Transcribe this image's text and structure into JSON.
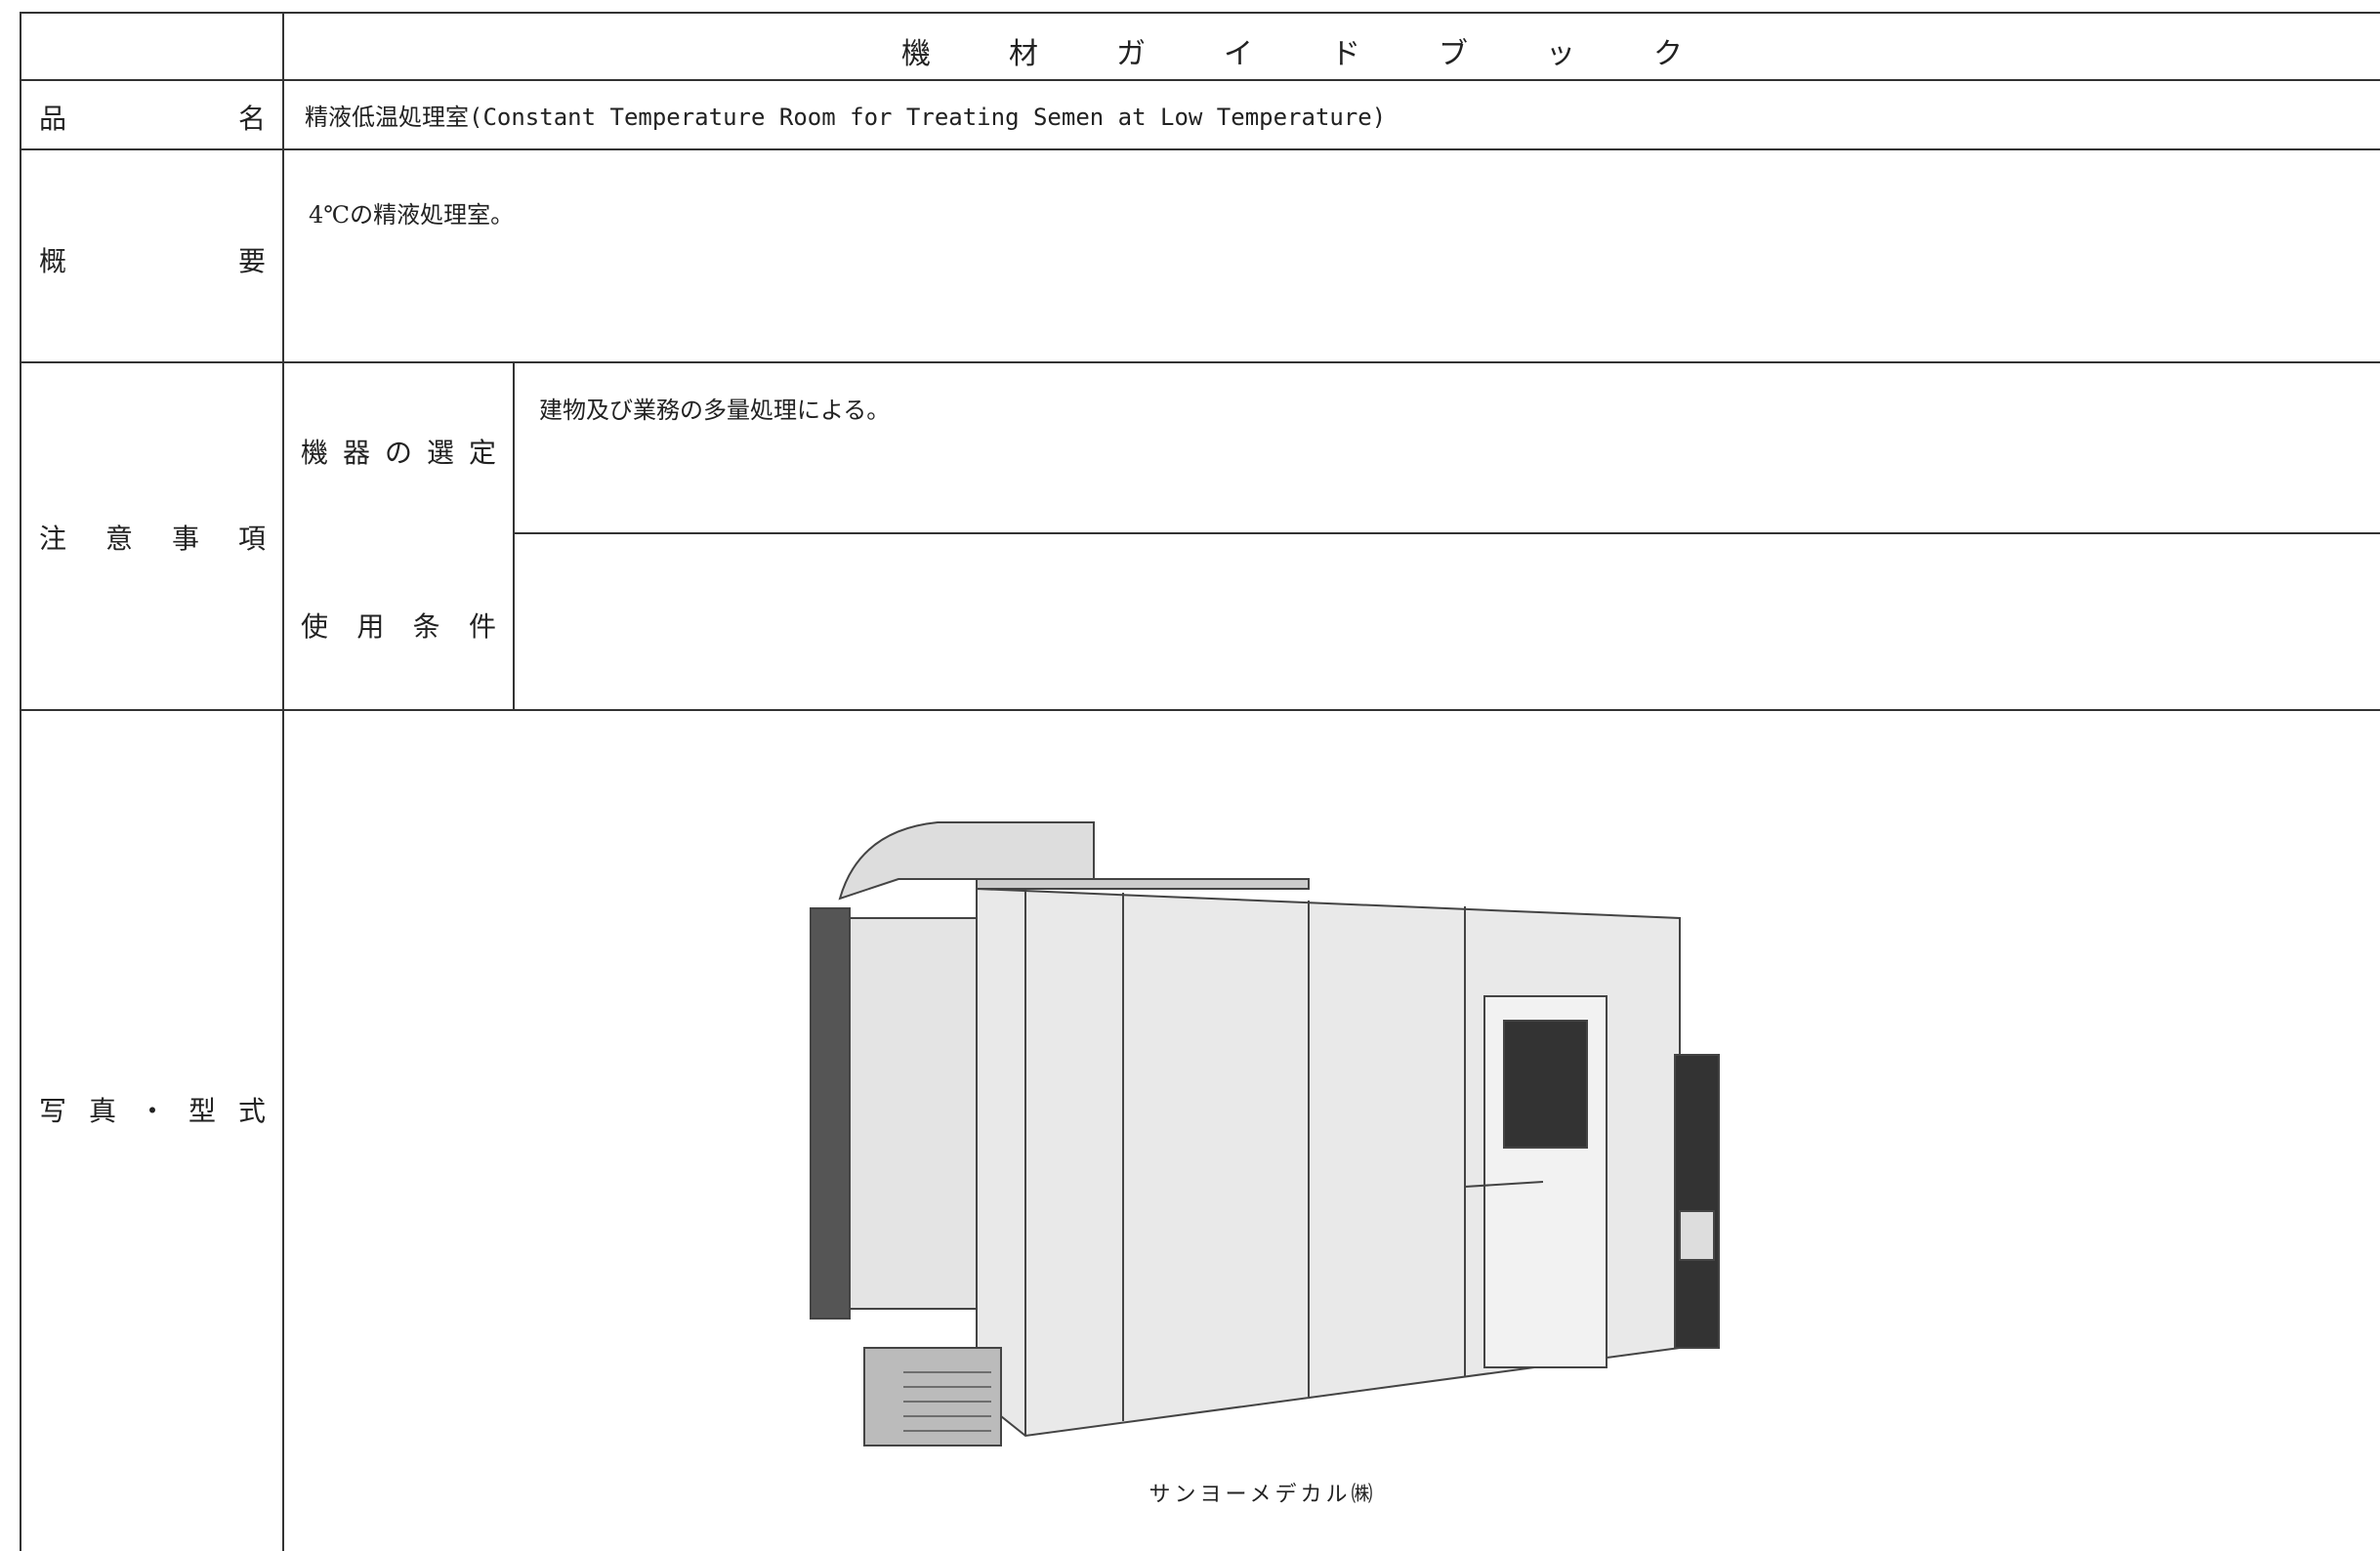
{
  "header": {
    "title": "機材ガイドブック"
  },
  "product": {
    "label": "品名",
    "value": "精液低温処理室(Constant Temperature Room for Treating Semen at Low Temperature)"
  },
  "summary": {
    "label": "概要",
    "value": "4℃の精液処理室。"
  },
  "notes": {
    "label": "注意事項",
    "selection": {
      "label": "機器の選定",
      "value": "建物及び業務の多量処理による。"
    },
    "conditions": {
      "label": "使用条件"
    }
  },
  "photo": {
    "label": "写真・型式",
    "caption": "サンヨーメデカル㈱"
  }
}
